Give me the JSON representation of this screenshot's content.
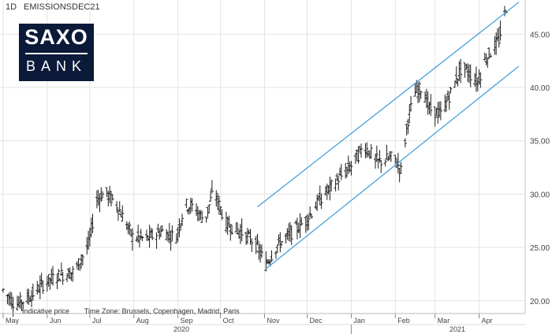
{
  "header": {
    "timeframe": "1D",
    "symbol": "EMISSIONSDEC21"
  },
  "logo": {
    "top": "SAXO",
    "bottom": "BANK"
  },
  "footer": {
    "indicative": "Indicative price",
    "timezone": "Time Zone: Brussels, Copenhagen, Madrid, Paris"
  },
  "colors": {
    "bars": "#1a1a1a",
    "channel": "#3b9ad9",
    "grid": "#e3e3e3",
    "axis": "#888888"
  },
  "chart_data": {
    "type": "ohlc",
    "title": "",
    "ylabel": "",
    "xlabel": "",
    "y_ticks": [
      20,
      25,
      30,
      35,
      40,
      45
    ],
    "y_tick_labels": [
      "20.00",
      "25.00",
      "30.00",
      "35.00",
      "40.00",
      "45.00"
    ],
    "ylim": [
      18.8,
      48.2
    ],
    "x_month_labels": [
      "May",
      "Jun",
      "Jul",
      "Aug",
      "Sep",
      "Oct",
      "Nov",
      "Dec",
      "Jan",
      "Feb",
      "Mar",
      "Apr"
    ],
    "x_year_labels": [
      "2020",
      "2021"
    ],
    "grid": true,
    "price_path": [
      [
        "2020-05-01",
        21.0
      ],
      [
        "2020-05-10",
        19.6
      ],
      [
        "2020-05-20",
        20.4
      ],
      [
        "2020-05-31",
        21.8
      ],
      [
        "2020-06-10",
        22.4
      ],
      [
        "2020-06-20",
        22.7
      ],
      [
        "2020-06-30",
        25.2
      ],
      [
        "2020-07-06",
        29.5
      ],
      [
        "2020-07-12",
        30.2
      ],
      [
        "2020-07-20",
        29.0
      ],
      [
        "2020-07-31",
        26.0
      ],
      [
        "2020-08-10",
        25.8
      ],
      [
        "2020-08-20",
        26.5
      ],
      [
        "2020-08-31",
        26.0
      ],
      [
        "2020-09-06",
        29.0
      ],
      [
        "2020-09-12",
        28.8
      ],
      [
        "2020-09-20",
        27.5
      ],
      [
        "2020-09-26",
        30.4
      ],
      [
        "2020-10-05",
        27.2
      ],
      [
        "2020-10-15",
        26.5
      ],
      [
        "2020-10-25",
        25.5
      ],
      [
        "2020-10-31",
        24.0
      ],
      [
        "2020-11-02",
        23.4
      ],
      [
        "2020-11-10",
        25.2
      ],
      [
        "2020-11-20",
        26.4
      ],
      [
        "2020-11-30",
        27.5
      ],
      [
        "2020-12-10",
        29.5
      ],
      [
        "2020-12-20",
        31.0
      ],
      [
        "2020-12-31",
        32.5
      ],
      [
        "2021-01-10",
        34.5
      ],
      [
        "2021-01-20",
        33.0
      ],
      [
        "2021-01-31",
        33.5
      ],
      [
        "2021-02-05",
        32.2
      ],
      [
        "2021-02-10",
        37.0
      ],
      [
        "2021-02-15",
        39.5
      ],
      [
        "2021-02-20",
        40.0
      ],
      [
        "2021-02-25",
        38.0
      ],
      [
        "2021-03-05",
        37.5
      ],
      [
        "2021-03-12",
        39.5
      ],
      [
        "2021-03-20",
        42.0
      ],
      [
        "2021-03-31",
        40.5
      ],
      [
        "2021-04-05",
        42.5
      ],
      [
        "2021-04-10",
        43.5
      ],
      [
        "2021-04-15",
        44.5
      ],
      [
        "2021-04-20",
        47.5
      ]
    ],
    "channel_lines": [
      {
        "name": "",
        "start": [
          "2020-10-27",
          28.8
        ],
        "end": [
          "2021-04-29",
          48.0
        ]
      },
      {
        "name": "",
        "start": [
          "2020-11-02",
          23.0
        ],
        "end": [
          "2021-04-29",
          42.0
        ]
      }
    ]
  }
}
